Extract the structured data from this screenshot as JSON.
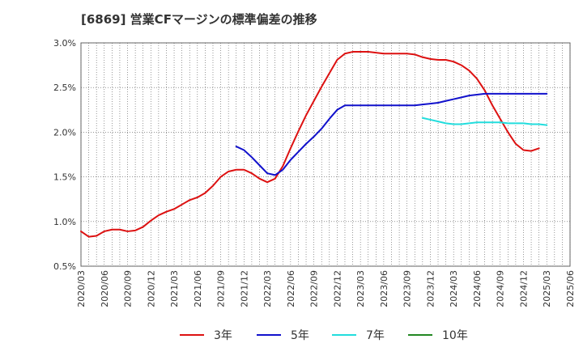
{
  "chart_data": {
    "type": "line",
    "title": "[6869]  営業CFマージンの標準偏差の推移",
    "xlabel": "",
    "ylabel": "",
    "ylim": [
      0.5,
      3.0
    ],
    "yticks": [
      "3.0%",
      "2.5%",
      "2.0%",
      "1.5%",
      "1.0%",
      "0.5%"
    ],
    "ytick_values": [
      3.0,
      2.5,
      2.0,
      1.5,
      1.0,
      0.5
    ],
    "xtick_labels": [
      "2020/03",
      "2020/06",
      "2020/09",
      "2020/12",
      "2021/03",
      "2021/06",
      "2021/09",
      "2021/12",
      "2022/03",
      "2022/06",
      "2022/09",
      "2022/12",
      "2023/03",
      "2023/06",
      "2023/09",
      "2023/12",
      "2024/03",
      "2024/06",
      "2024/09",
      "2024/12",
      "2025/03",
      "2025/06"
    ],
    "x_start": "2020/03",
    "x_end": "2025/06",
    "grid": true,
    "legend_position": "bottom",
    "series": [
      {
        "name": "3年",
        "color": "#dd1111",
        "x": [
          "2020/03",
          "2020/04",
          "2020/05",
          "2020/06",
          "2020/07",
          "2020/08",
          "2020/09",
          "2020/10",
          "2020/11",
          "2020/12",
          "2021/01",
          "2021/02",
          "2021/03",
          "2021/04",
          "2021/05",
          "2021/06",
          "2021/07",
          "2021/08",
          "2021/09",
          "2021/10",
          "2021/11",
          "2021/12",
          "2022/01",
          "2022/02",
          "2022/03",
          "2022/04",
          "2022/05",
          "2022/06",
          "2022/07",
          "2022/08",
          "2022/09",
          "2022/10",
          "2022/11",
          "2022/12",
          "2023/01",
          "2023/02",
          "2023/03",
          "2023/04",
          "2023/05",
          "2023/06",
          "2023/07",
          "2023/08",
          "2023/09",
          "2023/10",
          "2023/11",
          "2023/12",
          "2024/01",
          "2024/02",
          "2024/03",
          "2024/04",
          "2024/05",
          "2024/06",
          "2024/07",
          "2024/08",
          "2024/09",
          "2024/10",
          "2024/11",
          "2024/12",
          "2025/01",
          "2025/02",
          "2025/03"
        ],
        "values": [
          0.89,
          0.83,
          0.84,
          0.89,
          0.91,
          0.91,
          0.89,
          0.9,
          0.94,
          1.01,
          1.07,
          1.11,
          1.14,
          1.19,
          1.24,
          1.27,
          1.32,
          1.4,
          1.5,
          1.56,
          1.58,
          1.58,
          1.54,
          1.48,
          1.44,
          1.48,
          1.62,
          1.82,
          2.01,
          2.19,
          2.35,
          2.51,
          2.66,
          2.81,
          2.88,
          2.9,
          2.9,
          2.9,
          2.89,
          2.88,
          2.88,
          2.88,
          2.88,
          2.87,
          2.84,
          2.82,
          2.81,
          2.81,
          2.79,
          2.75,
          2.69,
          2.6,
          2.47,
          2.3,
          2.15,
          2.0,
          1.87,
          1.8,
          1.79,
          1.82,
          null
        ]
      },
      {
        "name": "5年",
        "color": "#1111cc",
        "x": [
          "2021/11",
          "2021/12",
          "2022/01",
          "2022/02",
          "2022/03",
          "2022/04",
          "2022/05",
          "2022/06",
          "2022/07",
          "2022/08",
          "2022/09",
          "2022/10",
          "2022/11",
          "2022/12",
          "2023/01",
          "2023/02",
          "2023/03",
          "2023/04",
          "2023/05",
          "2023/06",
          "2023/07",
          "2023/08",
          "2023/09",
          "2023/10",
          "2023/11",
          "2023/12",
          "2024/01",
          "2024/02",
          "2024/03",
          "2024/04",
          "2024/05",
          "2024/06",
          "2024/07",
          "2024/08",
          "2024/09",
          "2024/10",
          "2024/11",
          "2024/12",
          "2025/01",
          "2025/02",
          "2025/03"
        ],
        "values": [
          1.84,
          1.8,
          1.72,
          1.63,
          1.54,
          1.52,
          1.58,
          1.69,
          1.78,
          1.87,
          1.95,
          2.04,
          2.15,
          2.25,
          2.3,
          2.3,
          2.3,
          2.3,
          2.3,
          2.3,
          2.3,
          2.3,
          2.3,
          2.3,
          2.31,
          2.32,
          2.33,
          2.35,
          2.37,
          2.39,
          2.41,
          2.42,
          2.43,
          2.43,
          2.43,
          2.43,
          2.43,
          2.43,
          2.43,
          2.43,
          2.43
        ]
      },
      {
        "name": "7年",
        "color": "#22dddd",
        "x": [
          "2023/11",
          "2023/12",
          "2024/01",
          "2024/02",
          "2024/03",
          "2024/04",
          "2024/05",
          "2024/06",
          "2024/07",
          "2024/08",
          "2024/09",
          "2024/10",
          "2024/11",
          "2024/12",
          "2025/01",
          "2025/02",
          "2025/03"
        ],
        "values": [
          2.16,
          2.14,
          2.12,
          2.1,
          2.09,
          2.09,
          2.1,
          2.11,
          2.11,
          2.11,
          2.11,
          2.1,
          2.1,
          2.1,
          2.09,
          2.09,
          2.08
        ]
      },
      {
        "name": "10年",
        "color": "#228822",
        "x": [],
        "values": []
      }
    ]
  }
}
